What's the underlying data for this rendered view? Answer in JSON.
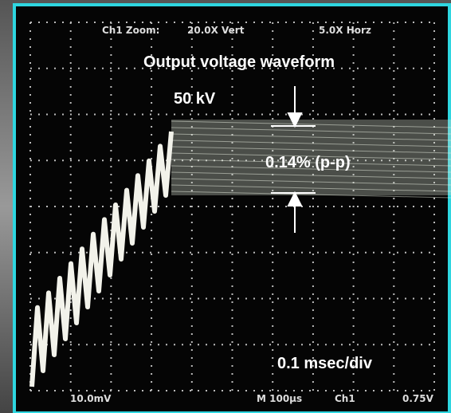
{
  "header": {
    "zoom_label": "Ch1 Zoom:",
    "vert_zoom": "20.0X Vert",
    "horz_zoom": "5.0X Horz"
  },
  "annotations": {
    "title": "Output voltage waveform",
    "voltage": "50 kV",
    "ripple": "0.14% (p-p)",
    "timebase": "0.1 msec/div"
  },
  "footer": {
    "ch_scale": "10.0mV",
    "time_scale": "M 100µs",
    "channel": "Ch1",
    "trigger_level": "0.75V"
  }
}
